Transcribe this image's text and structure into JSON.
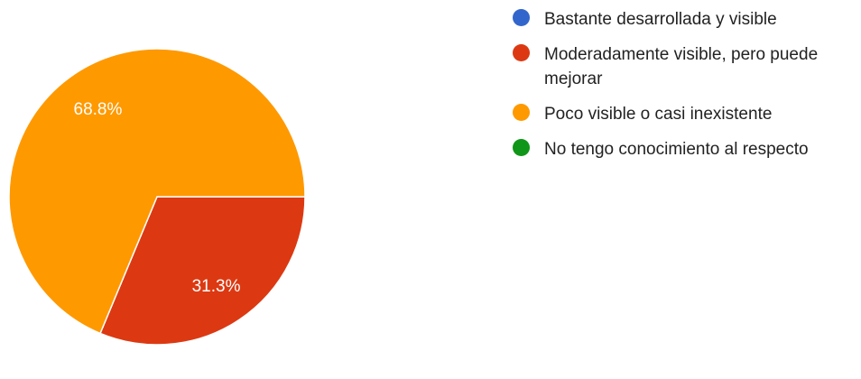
{
  "chart_data": {
    "type": "pie",
    "series": [
      {
        "name": "Bastante desarrollada y visible",
        "value": 0,
        "color": "#3366cc"
      },
      {
        "name": "Moderadamente visible, pero puede mejorar",
        "value": 31.3,
        "color": "#dc3912"
      },
      {
        "name": "Poco visible o casi inexistente",
        "value": 68.8,
        "color": "#ff9900"
      },
      {
        "name": "No tengo conocimiento al respecto",
        "value": 0,
        "color": "#109618"
      }
    ],
    "slice_labels": [
      "",
      "31.3%",
      "68.8%",
      ""
    ],
    "legend_position": "right"
  }
}
